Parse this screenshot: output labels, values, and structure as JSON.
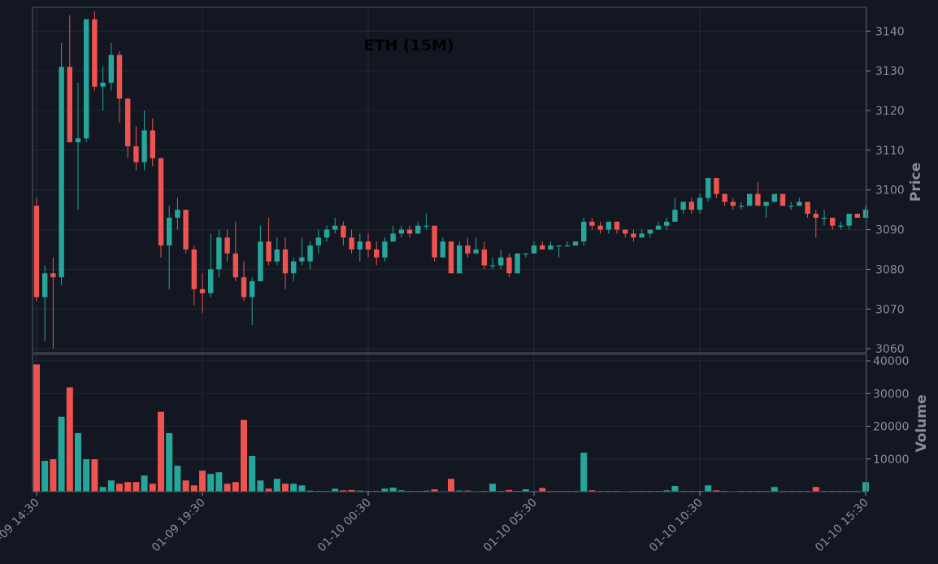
{
  "chart_data": {
    "type": "candlestick",
    "title": "ETH (15M)",
    "ylabel": "Price",
    "volume_label": "Volume",
    "price_ylim": [
      3059,
      3146
    ],
    "volume_ylim": [
      0,
      42000
    ],
    "price_ticks": [
      "3060",
      "3070",
      "3080",
      "3090",
      "3100",
      "3110",
      "3120",
      "3130",
      "3140"
    ],
    "price_tick_values": [
      3060,
      3070,
      3080,
      3090,
      3100,
      3110,
      3120,
      3130,
      3140
    ],
    "volume_ticks": [
      "10000",
      "20000",
      "30000",
      "40000"
    ],
    "volume_tick_values": [
      10000,
      20000,
      30000,
      40000
    ],
    "x_ticks": [
      "01-09 14:30",
      "01-09 19:30",
      "01-10 00:30",
      "01-10 05:30",
      "01-10 10:30",
      "01-10 15:30"
    ],
    "x_tick_index": [
      0,
      20,
      40,
      60,
      80,
      100
    ],
    "up_color": "#26a69a",
    "down_color": "#ef5350",
    "candles": [
      [
        3096,
        3098,
        3072,
        3073,
        39000
      ],
      [
        3073,
        3081,
        3062,
        3079,
        9500
      ],
      [
        3079,
        3083,
        3060,
        3078,
        10000
      ],
      [
        3078,
        3137,
        3076,
        3131,
        23000
      ],
      [
        3131,
        3144,
        3112,
        3112,
        32000
      ],
      [
        3112,
        3127,
        3095,
        3113,
        18000
      ],
      [
        3113,
        3143,
        3112,
        3143,
        10000
      ],
      [
        3143,
        3145,
        3125,
        3126,
        10000
      ],
      [
        3126,
        3131,
        3120,
        3127,
        1500
      ],
      [
        3127,
        3137,
        3125,
        3134,
        3500
      ],
      [
        3134,
        3135,
        3117,
        3123,
        2500
      ],
      [
        3123,
        3123,
        3108,
        3111,
        3000
      ],
      [
        3111,
        3116,
        3105,
        3107,
        3000
      ],
      [
        3107,
        3120,
        3105,
        3115,
        5000
      ],
      [
        3115,
        3118,
        3106,
        3108,
        2500
      ],
      [
        3108,
        3108,
        3083,
        3086,
        24500
      ],
      [
        3086,
        3096,
        3075,
        3093,
        18000
      ],
      [
        3093,
        3098,
        3090,
        3095,
        8000
      ],
      [
        3095,
        3095,
        3084,
        3085,
        3500
      ],
      [
        3085,
        3086,
        3071,
        3075,
        2000
      ],
      [
        3075,
        3079,
        3069,
        3074,
        6500
      ],
      [
        3074,
        3089,
        3073,
        3080,
        5500
      ],
      [
        3080,
        3090,
        3078,
        3088,
        6000
      ],
      [
        3088,
        3090,
        3082,
        3084,
        2500
      ],
      [
        3084,
        3092,
        3077,
        3078,
        3000
      ],
      [
        3078,
        3082,
        3072,
        3073,
        22000
      ],
      [
        3073,
        3078,
        3066,
        3077,
        11000
      ],
      [
        3077,
        3091,
        3077,
        3087,
        3500
      ],
      [
        3087,
        3093,
        3081,
        3082,
        1000
      ],
      [
        3082,
        3088,
        3081,
        3085,
        4000
      ],
      [
        3085,
        3088,
        3075,
        3079,
        2500
      ],
      [
        3079,
        3083,
        3077,
        3082,
        2500
      ],
      [
        3082,
        3088,
        3081,
        3083,
        2000
      ],
      [
        3082,
        3087,
        3080,
        3086,
        400
      ],
      [
        3086,
        3090,
        3084,
        3088,
        300
      ],
      [
        3088,
        3091,
        3087,
        3090,
        300
      ],
      [
        3090,
        3093,
        3089,
        3091,
        1000
      ],
      [
        3091,
        3092,
        3086,
        3088,
        500
      ],
      [
        3088,
        3090,
        3084,
        3085,
        600
      ],
      [
        3085,
        3089,
        3082,
        3087,
        400
      ],
      [
        3087,
        3089,
        3083,
        3085,
        300
      ],
      [
        3085,
        3087,
        3081,
        3083,
        300
      ],
      [
        3083,
        3088,
        3082,
        3087,
        1000
      ],
      [
        3087,
        3091,
        3087,
        3089,
        1300
      ],
      [
        3089,
        3091,
        3088,
        3090,
        500
      ],
      [
        3090,
        3091,
        3088,
        3089,
        300
      ],
      [
        3089,
        3092,
        3089,
        3091,
        300
      ],
      [
        3091,
        3094,
        3090,
        3091,
        400
      ],
      [
        3091,
        3091,
        3082,
        3083,
        800
      ],
      [
        3083,
        3088,
        3083,
        3087,
        200
      ],
      [
        3087,
        3087,
        3079,
        3079,
        4000
      ],
      [
        3079,
        3087,
        3079,
        3086,
        400
      ],
      [
        3086,
        3088,
        3083,
        3084,
        400
      ],
      [
        3084,
        3088,
        3084,
        3085,
        200
      ],
      [
        3085,
        3087,
        3080,
        3081,
        300
      ],
      [
        3081,
        3083,
        3080,
        3081,
        2500
      ],
      [
        3081,
        3085,
        3080,
        3083,
        300
      ],
      [
        3083,
        3084,
        3078,
        3079,
        600
      ],
      [
        3079,
        3084,
        3079,
        3084,
        300
      ],
      [
        3084,
        3084,
        3083,
        3084,
        800
      ],
      [
        3084,
        3087,
        3084,
        3086,
        300
      ],
      [
        3086,
        3087,
        3085,
        3085,
        1200
      ],
      [
        3085,
        3087,
        3085,
        3086,
        300
      ],
      [
        3086,
        3086,
        3083,
        3086,
        300
      ],
      [
        3086,
        3087,
        3086,
        3086,
        300
      ],
      [
        3086,
        3087,
        3086,
        3087,
        300
      ],
      [
        3087,
        3093,
        3086,
        3092,
        12000
      ],
      [
        3092,
        3093,
        3090,
        3091,
        500
      ],
      [
        3091,
        3092,
        3089,
        3090,
        300
      ],
      [
        3090,
        3092,
        3089,
        3092,
        300
      ],
      [
        3092,
        3092,
        3089,
        3090,
        300
      ],
      [
        3090,
        3090,
        3088,
        3089,
        200
      ],
      [
        3089,
        3090,
        3087,
        3088,
        300
      ],
      [
        3088,
        3090,
        3088,
        3089,
        300
      ],
      [
        3089,
        3090,
        3088,
        3090,
        300
      ],
      [
        3090,
        3092,
        3090,
        3091,
        300
      ],
      [
        3091,
        3093,
        3090,
        3092,
        500
      ],
      [
        3092,
        3098,
        3092,
        3095,
        1800
      ],
      [
        3095,
        3097,
        3094,
        3097,
        300
      ],
      [
        3097,
        3098,
        3094,
        3095,
        300
      ],
      [
        3095,
        3099,
        3094,
        3098,
        300
      ],
      [
        3098,
        3103,
        3097,
        3103,
        2000
      ],
      [
        3103,
        3103,
        3098,
        3099,
        500
      ],
      [
        3099,
        3099,
        3096,
        3097,
        300
      ],
      [
        3097,
        3098,
        3095,
        3096,
        200
      ],
      [
        3096,
        3097,
        3095,
        3096,
        300
      ],
      [
        3096,
        3099,
        3096,
        3099,
        300
      ],
      [
        3099,
        3102,
        3096,
        3096,
        300
      ],
      [
        3096,
        3097,
        3093,
        3097,
        300
      ],
      [
        3097,
        3099,
        3097,
        3099,
        1500
      ],
      [
        3099,
        3099,
        3096,
        3096,
        300
      ],
      [
        3096,
        3097,
        3095,
        3096,
        300
      ],
      [
        3096,
        3098,
        3096,
        3097,
        300
      ],
      [
        3097,
        3097,
        3093,
        3094,
        300
      ],
      [
        3094,
        3095,
        3088,
        3093,
        1500
      ],
      [
        3093,
        3095,
        3091,
        3093,
        300
      ],
      [
        3093,
        3093,
        3090,
        3091,
        300
      ],
      [
        3091,
        3092,
        3090,
        3091,
        300
      ],
      [
        3091,
        3094,
        3090,
        3094,
        300
      ],
      [
        3094,
        3094,
        3093,
        3093,
        300
      ],
      [
        3093,
        3096,
        3093,
        3095,
        3000
      ]
    ]
  }
}
